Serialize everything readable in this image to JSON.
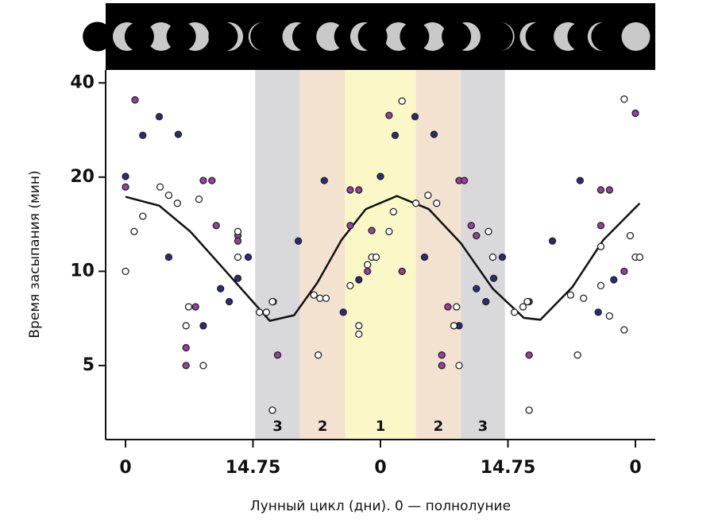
{
  "chart_data": {
    "type": "scatter",
    "x_label": "Лунный цикл (дни). 0 — полнолуние",
    "y_label": "Время засыпания (мин)",
    "xlim": [
      -2.3,
      61.3
    ],
    "ylim": [
      2.9,
      44
    ],
    "log_scale_y": true,
    "xticks": [
      {
        "value": 0,
        "label": "0"
      },
      {
        "value": 14.75,
        "label": "14.75"
      },
      {
        "value": 29.5,
        "label": "0"
      },
      {
        "value": 44.25,
        "label": "14.75"
      },
      {
        "value": 59,
        "label": "0"
      }
    ],
    "yticks": [
      5,
      10,
      20,
      40
    ],
    "bands": [
      {
        "label": "3",
        "from": 15,
        "to": 20.2,
        "color": "#d9d9dc"
      },
      {
        "label": "2",
        "from": 20.2,
        "to": 25.4,
        "color": "#f2e2cf"
      },
      {
        "label": "1",
        "from": 25.4,
        "to": 33.6,
        "color": "#fbf8c8"
      },
      {
        "label": "2",
        "from": 33.6,
        "to": 38.8,
        "color": "#f2e2cf"
      },
      {
        "label": "3",
        "from": 38.8,
        "to": 43.9,
        "color": "#d9d9dc"
      }
    ],
    "series": [
      {
        "style": "line",
        "color": "#111111",
        "x": [
          0,
          3.9,
          7.5,
          11.2,
          14.9,
          16.7,
          19.5,
          22.2,
          25,
          27.8,
          31.4,
          35.1,
          38.8,
          42.5,
          46.1,
          48,
          51.7,
          55.3,
          59.5
        ],
        "values": [
          17.3,
          16.2,
          13.4,
          10.3,
          7.9,
          6.95,
          7.24,
          9.2,
          12.6,
          15.8,
          17.4,
          15.8,
          12.3,
          8.8,
          7.1,
          7.0,
          8.9,
          12.6,
          16.5
        ]
      },
      {
        "style": "points",
        "color": "#2b2a7c",
        "x": [
          0,
          2,
          3.9,
          5,
          6.1,
          9,
          11,
          12,
          13,
          14.2,
          17.1,
          20,
          23,
          25.2,
          27,
          29.5,
          31.2,
          33.5,
          34.6,
          35.7,
          38.6,
          40.6,
          41.7,
          42.6,
          43.6,
          46.7,
          49.4,
          52.6,
          54.7,
          56.5
        ],
        "values": [
          20.1,
          27.2,
          31.2,
          11.1,
          27.4,
          6.7,
          8.8,
          8.0,
          9.5,
          11.1,
          8.0,
          12.5,
          19.5,
          7.4,
          9.4,
          20.1,
          27.2,
          31.2,
          11.1,
          27.4,
          6.7,
          8.8,
          8.0,
          9.5,
          11.1,
          8.0,
          12.5,
          19.5,
          7.4,
          9.4
        ]
      },
      {
        "style": "points",
        "color": "#9a3ea3",
        "x": [
          0,
          1.1,
          7,
          7,
          8.1,
          9,
          10,
          10.5,
          13,
          13,
          17.6,
          26,
          26,
          27,
          28.5,
          28,
          30.5,
          32,
          36.6,
          36.6,
          37.3,
          38.6,
          39.2,
          40,
          40.6,
          46.7,
          55,
          56,
          55,
          57.7,
          59
        ],
        "values": [
          18.6,
          35.3,
          5.7,
          5.0,
          7.7,
          19.5,
          19.5,
          14,
          13,
          12.5,
          5.4,
          14,
          18.2,
          18.2,
          13.5,
          10,
          31.5,
          10,
          5.4,
          5.0,
          7.7,
          19.5,
          19.5,
          14,
          13,
          5.4,
          18.2,
          18.2,
          14,
          10,
          32
        ]
      },
      {
        "style": "points",
        "color": "#ffffff",
        "x": [
          0,
          1,
          2,
          4,
          5,
          6,
          7,
          7.3,
          8.5,
          9,
          13,
          13,
          15.5,
          16.3,
          17,
          17,
          21.8,
          22.3,
          22.5,
          23.2,
          26,
          27,
          27,
          28,
          28.5,
          29,
          30.5,
          31,
          32,
          33.6,
          35,
          36,
          38,
          38.3,
          38.6,
          42,
          42.5,
          45,
          46,
          46.5,
          46.7,
          51.5,
          52.3,
          53,
          55,
          55,
          56,
          57.7,
          57.7,
          58.4,
          59,
          59.5
        ],
        "values": [
          10,
          13.4,
          15,
          18.6,
          17.5,
          16.5,
          6.7,
          7.7,
          17,
          5,
          13.4,
          11.1,
          7.4,
          7.4,
          8,
          3.6,
          8.4,
          5.4,
          8.2,
          8.2,
          9,
          6.3,
          6.7,
          10.5,
          11.1,
          11.1,
          13.4,
          15.5,
          35,
          16.5,
          17.5,
          16.5,
          6.7,
          7.7,
          5.0,
          13.4,
          11.1,
          7.4,
          7.7,
          8,
          3.6,
          8.4,
          5.4,
          8.2,
          12,
          9,
          7.2,
          6.5,
          35.5,
          13,
          11.1,
          11.1
        ]
      }
    ]
  }
}
